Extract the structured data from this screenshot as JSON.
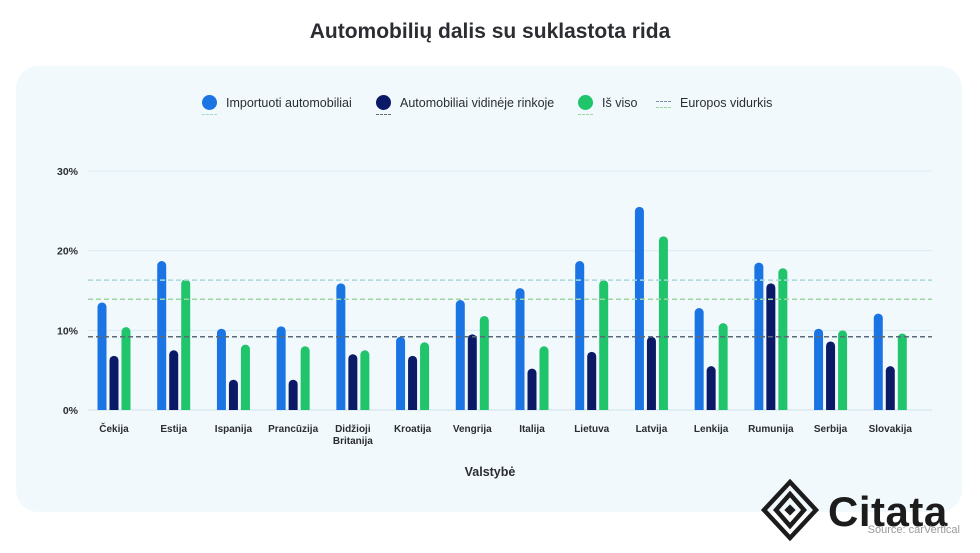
{
  "title": "Automobilių dalis su suklastota rida",
  "legend": [
    {
      "label": "Importuoti automobiliai",
      "color": "#1b74e4"
    },
    {
      "label": "Automobiliai vidinėje rinkoje",
      "color": "#0b1a66"
    },
    {
      "label": "Iš viso",
      "color": "#1fc46b"
    },
    {
      "label": "Europos vidurkis",
      "color": "#9fbfb4"
    }
  ],
  "source": "Source: carVertical",
  "logo_text": "Citata",
  "chart_data": {
    "type": "bar",
    "xlabel": "Valstybė",
    "ylabel": "",
    "ylim": [
      0,
      30
    ],
    "yticks": [
      "0%",
      "10%",
      "20%",
      "30%"
    ],
    "grid": true,
    "legend_position": "top",
    "categories": [
      [
        "Čekija"
      ],
      [
        "Estija"
      ],
      [
        "Ispanija"
      ],
      [
        "Prancūzija"
      ],
      [
        "Didžioji",
        "Britanija"
      ],
      [
        "Kroatija"
      ],
      [
        "Vengrija"
      ],
      [
        "Italija"
      ],
      [
        "Lietuva"
      ],
      [
        "Latvija"
      ],
      [
        "Lenkija"
      ],
      [
        "Rumunija"
      ],
      [
        "Serbija"
      ],
      [
        "Slovakija"
      ]
    ],
    "series": [
      {
        "name": "Importuoti automobiliai",
        "color": "#1b74e4",
        "values": [
          13.5,
          18.7,
          10.2,
          10.5,
          15.9,
          9.2,
          13.8,
          15.3,
          18.7,
          25.5,
          12.8,
          18.5,
          10.2,
          12.1
        ]
      },
      {
        "name": "Automobiliai vidinėje rinkoje",
        "color": "#0b1a66",
        "values": [
          6.8,
          7.5,
          3.8,
          3.8,
          7.0,
          6.8,
          9.5,
          5.2,
          7.3,
          9.2,
          5.5,
          15.9,
          8.6,
          5.5
        ]
      },
      {
        "name": "Iš viso",
        "color": "#1fc46b",
        "values": [
          10.4,
          16.4,
          8.2,
          8.0,
          7.5,
          8.5,
          11.8,
          8.0,
          16.3,
          21.8,
          10.9,
          17.8,
          10.0,
          9.6
        ]
      }
    ],
    "reference_lines": [
      {
        "name": "Europos vidurkis",
        "series": "Importuoti automobiliai",
        "value": 16.3,
        "color": "#a9d8dc"
      },
      {
        "name": "Europos vidurkis",
        "series": "Automobiliai vidinėje rinkoje",
        "value": 9.2,
        "color": "#5b6b7a"
      },
      {
        "name": "Europos vidurkis",
        "series": "Iš viso",
        "value": 13.9,
        "color": "#9fd4a3"
      }
    ]
  }
}
